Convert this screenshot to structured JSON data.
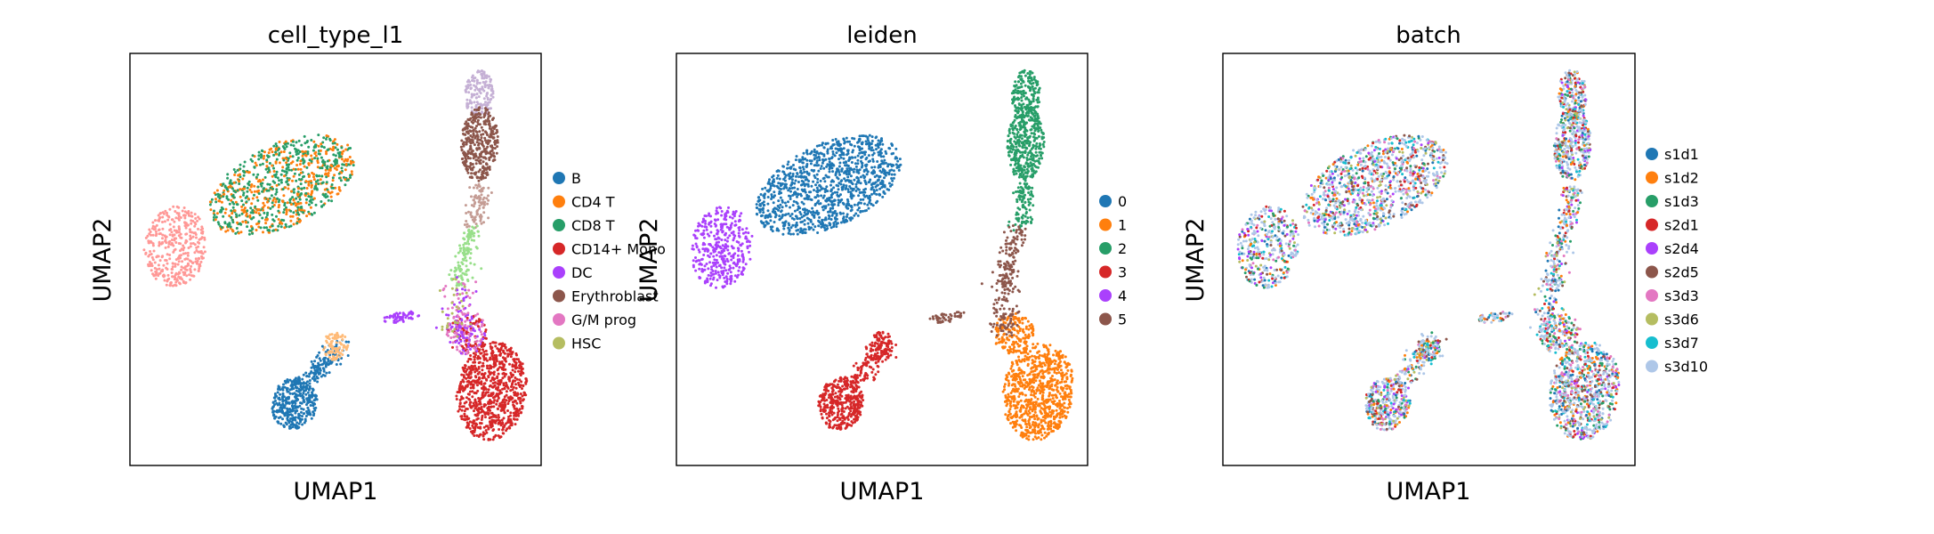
{
  "chart_data": [
    {
      "type": "scatter",
      "title": "cell_type_l1",
      "xlabel": "UMAP1",
      "ylabel": "UMAP2",
      "legend_placement": "right",
      "series": [
        {
          "name": "B",
          "color": "#1f77b4"
        },
        {
          "name": "CD4 T",
          "color": "#ff7f0e"
        },
        {
          "name": "CD8 T",
          "color": "#279e68"
        },
        {
          "name": "CD14+ Mono",
          "color": "#d62728"
        },
        {
          "name": "DC",
          "color": "#aa40fc"
        },
        {
          "name": "Erythroblast",
          "color": "#8c564b"
        },
        {
          "name": "G/M prog",
          "color": "#e377c2"
        },
        {
          "name": "HSC",
          "color": "#b5bd61"
        }
      ],
      "extra_colors_without_legend": [
        "#ff9896",
        "#c5b0d5",
        "#c49c94",
        "#98df8a",
        "#ffbb78"
      ]
    },
    {
      "type": "scatter",
      "title": "leiden",
      "xlabel": "UMAP1",
      "ylabel": "UMAP2",
      "legend_placement": "right",
      "series": [
        {
          "name": "0",
          "color": "#1f77b4"
        },
        {
          "name": "1",
          "color": "#ff7f0e"
        },
        {
          "name": "2",
          "color": "#279e68"
        },
        {
          "name": "3",
          "color": "#d62728"
        },
        {
          "name": "4",
          "color": "#aa40fc"
        },
        {
          "name": "5",
          "color": "#8c564b"
        }
      ]
    },
    {
      "type": "scatter",
      "title": "batch",
      "xlabel": "UMAP1",
      "ylabel": "UMAP2",
      "legend_placement": "right",
      "series": [
        {
          "name": "s1d1",
          "color": "#1f77b4"
        },
        {
          "name": "s1d2",
          "color": "#ff7f0e"
        },
        {
          "name": "s1d3",
          "color": "#279e68"
        },
        {
          "name": "s2d1",
          "color": "#d62728"
        },
        {
          "name": "s2d4",
          "color": "#aa40fc"
        },
        {
          "name": "s2d5",
          "color": "#8c564b"
        },
        {
          "name": "s3d3",
          "color": "#e377c2"
        },
        {
          "name": "s3d6",
          "color": "#b5bd61"
        },
        {
          "name": "s3d7",
          "color": "#17becf"
        },
        {
          "name": "s3d10",
          "color": "#aec7e8"
        }
      ]
    }
  ]
}
